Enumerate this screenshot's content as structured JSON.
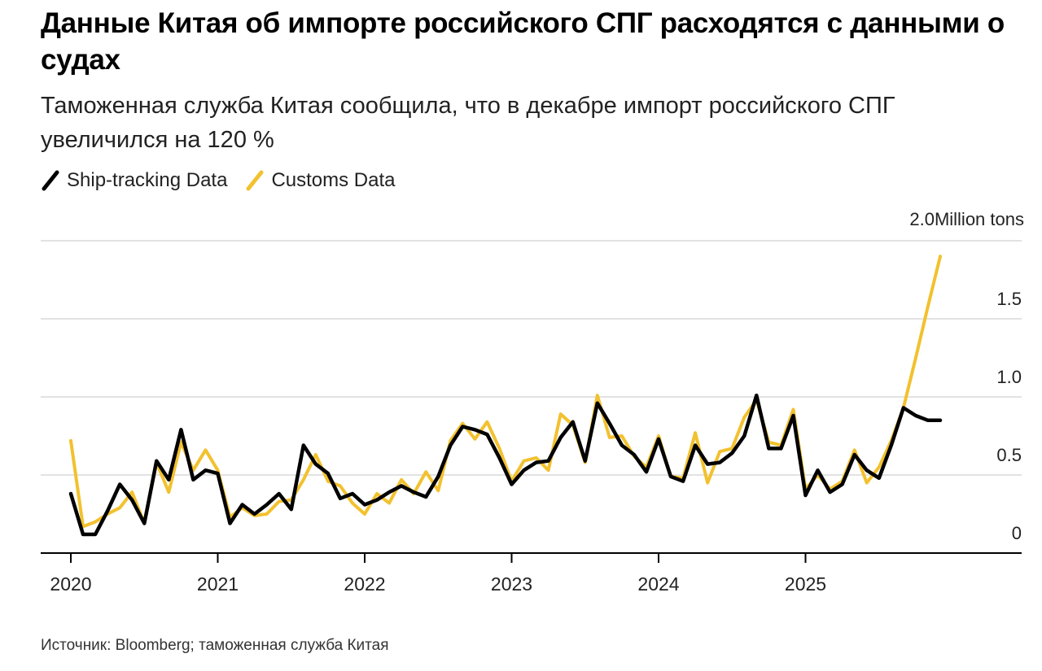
{
  "title": "Данные Китая об импорте российского СПГ расходятся с данными о судах",
  "subtitle": "Таможенная служба Китая сообщила, что в декабре импорт российского СПГ увеличился на 120 %",
  "source": "Источник: Bloomberg; таможенная служба Китая",
  "colors": {
    "ship": "#000000",
    "customs": "#f2c12e",
    "grid": "#d9d9d9",
    "axis": "#000000"
  },
  "chart_data": {
    "type": "line",
    "unit_label": "Million tons",
    "ylim": [
      0,
      2.0
    ],
    "y_ticks": [
      {
        "value": 0,
        "label": "0"
      },
      {
        "value": 0.5,
        "label": "0.5"
      },
      {
        "value": 1.0,
        "label": "1.0"
      },
      {
        "value": 1.5,
        "label": "1.5"
      },
      {
        "value": 2.0,
        "label": "2.0"
      }
    ],
    "x_ticks": [
      "2020",
      "2021",
      "2022",
      "2023",
      "2024",
      "2025"
    ],
    "x_start_year": 2020,
    "series": [
      {
        "name": "Ship-tracking Data",
        "color": "#000000",
        "values": [
          0.38,
          0.12,
          0.12,
          0.27,
          0.44,
          0.34,
          0.19,
          0.59,
          0.47,
          0.79,
          0.47,
          0.53,
          0.51,
          0.19,
          0.31,
          0.25,
          0.31,
          0.38,
          0.28,
          0.69,
          0.57,
          0.51,
          0.35,
          0.38,
          0.31,
          0.34,
          0.39,
          0.43,
          0.39,
          0.36,
          0.49,
          0.69,
          0.81,
          0.79,
          0.76,
          0.61,
          0.44,
          0.53,
          0.58,
          0.59,
          0.74,
          0.84,
          0.59,
          0.96,
          0.83,
          0.69,
          0.63,
          0.52,
          0.73,
          0.49,
          0.46,
          0.69,
          0.57,
          0.58,
          0.64,
          0.75,
          1.01,
          0.67,
          0.67,
          0.88,
          0.37,
          0.53,
          0.39,
          0.44,
          0.63,
          0.53,
          0.48,
          0.69,
          0.93,
          0.88,
          0.85,
          0.85
        ]
      },
      {
        "name": "Customs Data",
        "color": "#f2c12e",
        "values": [
          0.72,
          0.17,
          0.2,
          0.25,
          0.29,
          0.39,
          0.19,
          0.58,
          0.39,
          0.71,
          0.53,
          0.66,
          0.53,
          0.23,
          0.29,
          0.24,
          0.25,
          0.33,
          0.34,
          0.47,
          0.63,
          0.46,
          0.43,
          0.32,
          0.25,
          0.38,
          0.32,
          0.47,
          0.38,
          0.52,
          0.4,
          0.72,
          0.83,
          0.73,
          0.84,
          0.67,
          0.46,
          0.59,
          0.61,
          0.53,
          0.89,
          0.82,
          0.58,
          1.01,
          0.74,
          0.75,
          0.62,
          0.55,
          0.75,
          0.49,
          0.48,
          0.77,
          0.45,
          0.65,
          0.67,
          0.87,
          0.98,
          0.71,
          0.69,
          0.92,
          0.41,
          0.5,
          0.41,
          0.46,
          0.66,
          0.45,
          0.55,
          0.72,
          0.93,
          1.25,
          1.58,
          1.9
        ]
      }
    ]
  }
}
